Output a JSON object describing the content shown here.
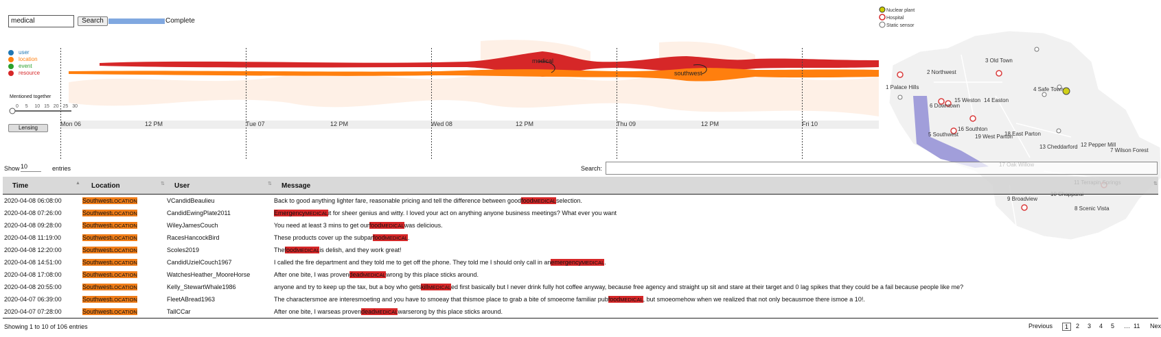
{
  "search": {
    "query": "medical",
    "button": "Search",
    "status": "Complete"
  },
  "entity_legend": [
    {
      "name": "user",
      "color": "#1f77b4"
    },
    {
      "name": "location",
      "color": "#ff7f0e"
    },
    {
      "name": "event",
      "color": "#2ca02c"
    },
    {
      "name": "resource",
      "color": "#d62728"
    }
  ],
  "slider": {
    "label": "Mentioned together",
    "ticks": [
      "0",
      "5",
      "10",
      "15",
      "20",
      "25",
      "30"
    ]
  },
  "lensing_button": "Lensing",
  "timeline": {
    "axis_labels": [
      "Mon 06",
      "12 PM",
      "Tue 07",
      "12 PM",
      "Wed 08",
      "12 PM",
      "Thu 09",
      "12 PM",
      "Fri 10"
    ],
    "stream_labels": [
      "medical",
      "southwest"
    ]
  },
  "map_legend": [
    "Nuclear plant",
    "Hospital",
    "Static sensor"
  ],
  "map_regions": [
    "1 Palace Hills",
    "2 Northwest",
    "3 Old Town",
    "4 Safe Town",
    "5 Southwest",
    "6 Downtown",
    "7 Wilson Forest",
    "8 Scenic Vista",
    "9 Broadview",
    "10 Chapparal",
    "11 Terrapin Springs",
    "12 Pepper Mill",
    "13 Cheddarford",
    "14 Easton",
    "15 Weston",
    "16 Southton",
    "17 Oak Willow",
    "18 East Parton",
    "19 West Parton"
  ],
  "table": {
    "show_label": "Show",
    "page_size": "10",
    "entries_label": "entries",
    "search_label": "Search:",
    "headers": [
      "Time",
      "Location",
      "User",
      "Message"
    ],
    "rows": [
      {
        "time": "2020-04-08 06:08:00",
        "location": "Southwest",
        "location_kind": "LOCATION",
        "user": "VCandidBeaulieu",
        "message": [
          {
            "text": "Back to good anything lighter fare, reasonable pricing and tell the difference between good"
          },
          {
            "tag": "food",
            "kind": "MEDICAL"
          },
          {
            "text": "selection."
          }
        ]
      },
      {
        "time": "2020-04-08 07:26:00",
        "location": "Southwest",
        "location_kind": "LOCATION",
        "user": "CandidEwingPlate2011",
        "message": [
          {
            "tag": "Emergency",
            "kind": "MEDICAL"
          },
          {
            "text": "it for sheer genius and witty. I loved your act on anything anyone business meetings? What ever you want"
          }
        ]
      },
      {
        "time": "2020-04-08 09:28:00",
        "location": "Southwest",
        "location_kind": "LOCATION",
        "user": "WileyJamesCouch",
        "message": [
          {
            "text": "You need at least 3 mins to get our"
          },
          {
            "tag": "food",
            "kind": "MEDICAL"
          },
          {
            "text": "was delicious."
          }
        ]
      },
      {
        "time": "2020-04-08 11:19:00",
        "location": "Southwest",
        "location_kind": "LOCATION",
        "user": "RacesHancockBird",
        "message": [
          {
            "text": "These products cover up the subpar"
          },
          {
            "tag": "food",
            "kind": "MEDICAL"
          },
          {
            "text": "."
          }
        ]
      },
      {
        "time": "2020-04-08 12:20:00",
        "location": "Southwest",
        "location_kind": "LOCATION",
        "user": "Scoles2019",
        "message": [
          {
            "text": "The"
          },
          {
            "tag": "food",
            "kind": "MEDICAL"
          },
          {
            "text": "is delish, and they work great!"
          }
        ]
      },
      {
        "time": "2020-04-08 14:51:00",
        "location": "Southwest",
        "location_kind": "LOCATION",
        "user": "CandidUzielCouch1967",
        "message": [
          {
            "text": "I called the fire department and they told me to get off the phone. They told me I should only call in an"
          },
          {
            "tag": "emergency",
            "kind": "MEDICAL"
          },
          {
            "text": "."
          }
        ]
      },
      {
        "time": "2020-04-08 17:08:00",
        "location": "Southwest",
        "location_kind": "LOCATION",
        "user": "WatchesHeather_MooreHorse",
        "message": [
          {
            "text": "After one bite, I was proven"
          },
          {
            "tag": "dead",
            "kind": "MEDICAL"
          },
          {
            "text": "wrong by this place sticks around."
          }
        ]
      },
      {
        "time": "2020-04-08 20:55:00",
        "location": "Southwest",
        "location_kind": "LOCATION",
        "user": "Kelly_StewartWhale1986",
        "message": [
          {
            "text": "anyone and try to keep up the tax, but a boy who gets"
          },
          {
            "tag": "kill",
            "kind": "MEDICAL"
          },
          {
            "text": "ed first basically but I never drink fully hot coffee anyway, because free agency and straight up sit and stare at their target and 0 lag spikes that they could be a fail because people like me?"
          }
        ]
      },
      {
        "time": "2020-04-07 06:39:00",
        "location": "Southwest",
        "location_kind": "LOCATION",
        "user": "FleetABread1963",
        "message": [
          {
            "text": "The charactersmoe are interesmoeting and you have to smoeay that thismoe place to grab a bite of smoeome familiar pub"
          },
          {
            "tag": "food",
            "kind": "MEDICAL"
          },
          {
            "text": ", but smoeomehow when we realized that not only becausmoe there ismoe a 10!."
          }
        ]
      },
      {
        "time": "2020-04-07 07:28:00",
        "location": "Southwest",
        "location_kind": "LOCATION",
        "user": "TallCCar",
        "message": [
          {
            "text": "After one bite, I warseas proven"
          },
          {
            "tag": "dead",
            "kind": "MEDICAL"
          },
          {
            "text": "warserong by this place sticks around."
          }
        ]
      }
    ],
    "info": "Showing 1 to 10 of 106 entries",
    "pagination": [
      "Previous",
      "1",
      "2",
      "3",
      "4",
      "5",
      "…",
      "11",
      "Next"
    ]
  }
}
